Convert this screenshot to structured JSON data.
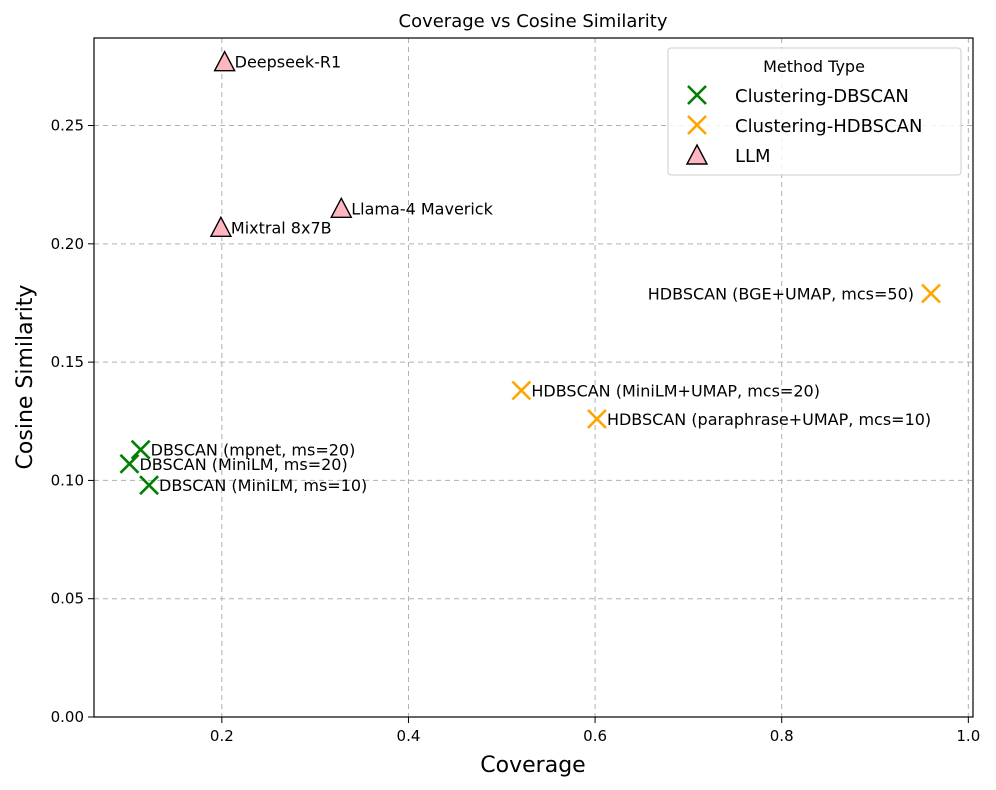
{
  "chart_data": {
    "type": "scatter",
    "title": "Coverage vs Cosine Similarity",
    "xlabel": "Coverage",
    "ylabel": "Cosine Similarity",
    "xlim": [
      0.063,
      1.005
    ],
    "ylim": [
      0.0,
      0.287
    ],
    "xticks": [
      0.2,
      0.4,
      0.6,
      0.8,
      1.0
    ],
    "xtick_labels": [
      "0.2",
      "0.4",
      "0.6",
      "0.8",
      "1.0"
    ],
    "yticks": [
      0.0,
      0.05,
      0.1,
      0.15,
      0.2,
      0.25
    ],
    "ytick_labels": [
      "0.00",
      "0.05",
      "0.10",
      "0.15",
      "0.20",
      "0.25"
    ],
    "grid": true,
    "legend": {
      "title": "Method Type",
      "location": "upper right",
      "entries": [
        {
          "label": "Clustering-DBSCAN",
          "marker": "x",
          "color": "#008000"
        },
        {
          "label": "Clustering-HDBSCAN",
          "marker": "x",
          "color": "#ffa500"
        },
        {
          "label": "LLM",
          "marker": "triangle",
          "color": "#ffb6c1"
        }
      ]
    },
    "series": [
      {
        "name": "Clustering-DBSCAN",
        "marker": "x",
        "color": "#008000",
        "points": [
          {
            "label": "DBSCAN (mpnet, ms=20)",
            "x": 0.113,
            "y": 0.113
          },
          {
            "label": "DBSCAN (MiniLM, ms=20)",
            "x": 0.101,
            "y": 0.107
          },
          {
            "label": "DBSCAN (MiniLM, ms=10)",
            "x": 0.122,
            "y": 0.098
          }
        ]
      },
      {
        "name": "Clustering-HDBSCAN",
        "marker": "x",
        "color": "#ffa500",
        "points": [
          {
            "label": "HDBSCAN (BGE+UMAP, mcs=50)",
            "x": 0.96,
            "y": 0.179,
            "label_side": "left"
          },
          {
            "label": "HDBSCAN (MiniLM+UMAP, mcs=20)",
            "x": 0.521,
            "y": 0.138
          },
          {
            "label": "HDBSCAN (paraphrase+UMAP, mcs=10)",
            "x": 0.602,
            "y": 0.126
          }
        ]
      },
      {
        "name": "LLM",
        "marker": "triangle",
        "color": "#ffb6c1",
        "points": [
          {
            "label": "Deepseek-R1",
            "x": 0.203,
            "y": 0.277
          },
          {
            "label": "Llama-4 Maverick",
            "x": 0.328,
            "y": 0.215
          },
          {
            "label": "Mixtral 8x7B",
            "x": 0.199,
            "y": 0.207
          }
        ]
      }
    ]
  }
}
